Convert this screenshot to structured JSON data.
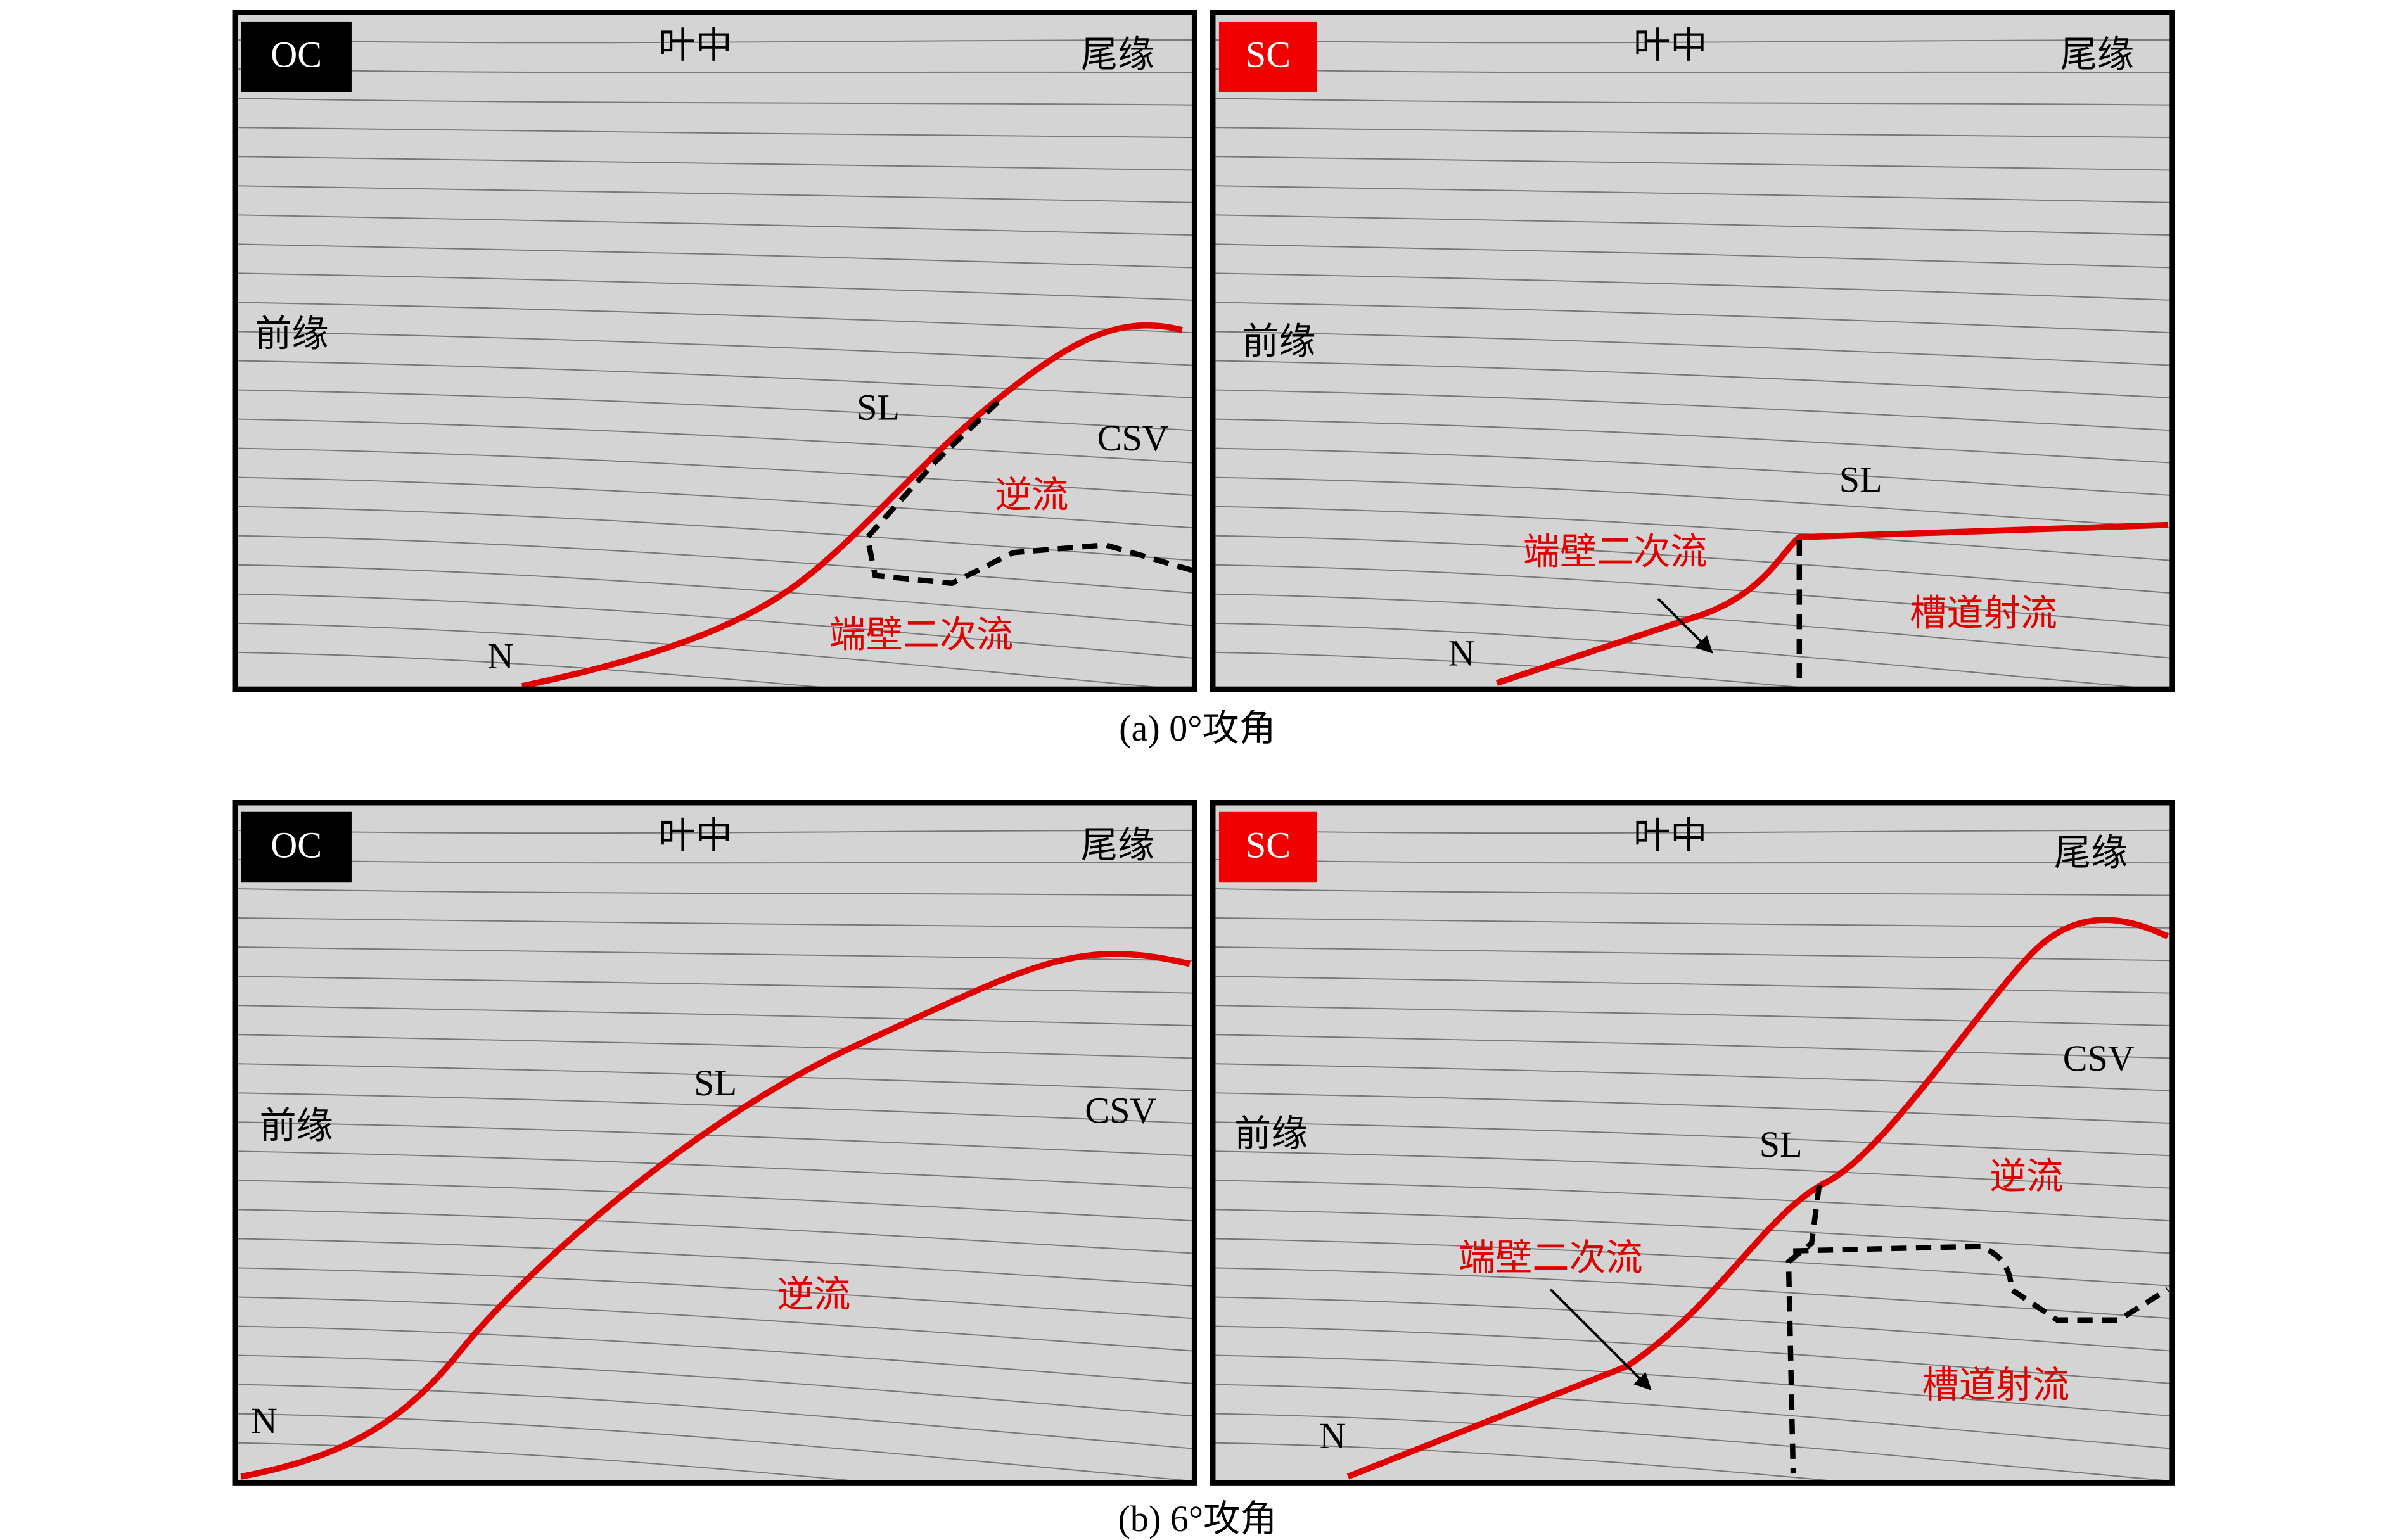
{
  "figures": [
    {
      "caption": "(a) 0°攻角",
      "panels": [
        {
          "badge": "OC",
          "midspan": "叶中",
          "trailing_edge": "尾缘",
          "leading_edge": "前缘",
          "separation_line": "SL",
          "vortex": "CSV",
          "reverse_flow": "逆流",
          "endwall_flow": "端壁二次流",
          "node": "N"
        },
        {
          "badge": "SC",
          "midspan": "叶中",
          "trailing_edge": "尾缘",
          "leading_edge": "前缘",
          "separation_line": "SL",
          "endwall_flow": "端壁二次流",
          "slot_jet": "槽道射流",
          "node": "N"
        }
      ]
    },
    {
      "caption": "(b) 6°攻角",
      "panels": [
        {
          "badge": "OC",
          "midspan": "叶中",
          "trailing_edge": "尾缘",
          "leading_edge": "前缘",
          "separation_line": "SL",
          "vortex": "CSV",
          "reverse_flow": "逆流",
          "node": "N"
        },
        {
          "badge": "SC",
          "midspan": "叶中",
          "trailing_edge": "尾缘",
          "leading_edge": "前缘",
          "separation_line": "SL",
          "vortex": "CSV",
          "reverse_flow": "逆流",
          "endwall_flow": "端壁二次流",
          "slot_jet": "槽道射流",
          "node": "N"
        }
      ]
    }
  ]
}
